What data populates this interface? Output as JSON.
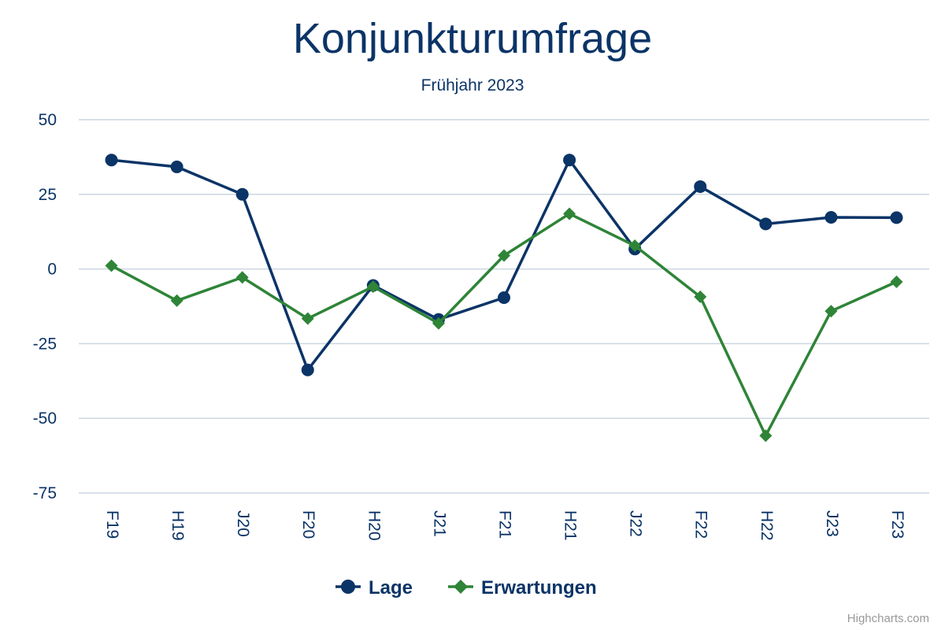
{
  "chart_data": {
    "type": "line",
    "title": "Konjunkturumfrage",
    "subtitle": "Frühjahr 2023",
    "categories": [
      "F19",
      "H19",
      "J20",
      "F20",
      "H20",
      "J21",
      "F21",
      "H21",
      "J22",
      "F22",
      "H22",
      "J23",
      "F23"
    ],
    "ylim": [
      -75,
      50
    ],
    "yticks": [
      50,
      25,
      0,
      -25,
      -50,
      -75
    ],
    "grid": true,
    "legend_position": "bottom-center",
    "series": [
      {
        "name": "Lage",
        "color": "#0b3467",
        "marker": "circle",
        "values": [
          36.5,
          34.2,
          25,
          -33.8,
          -5.5,
          -16.9,
          -9.6,
          36.5,
          6.7,
          27.6,
          15.1,
          17.3,
          17.2
        ]
      },
      {
        "name": "Erwartungen",
        "color": "#2e8437",
        "marker": "diamond",
        "values": [
          1.1,
          -10.6,
          -2.8,
          -16.6,
          -5.9,
          -18.2,
          4.5,
          18.5,
          7.8,
          -9.3,
          -55.8,
          -14.1,
          -4.3
        ]
      }
    ]
  },
  "credits": "Highcharts.com"
}
